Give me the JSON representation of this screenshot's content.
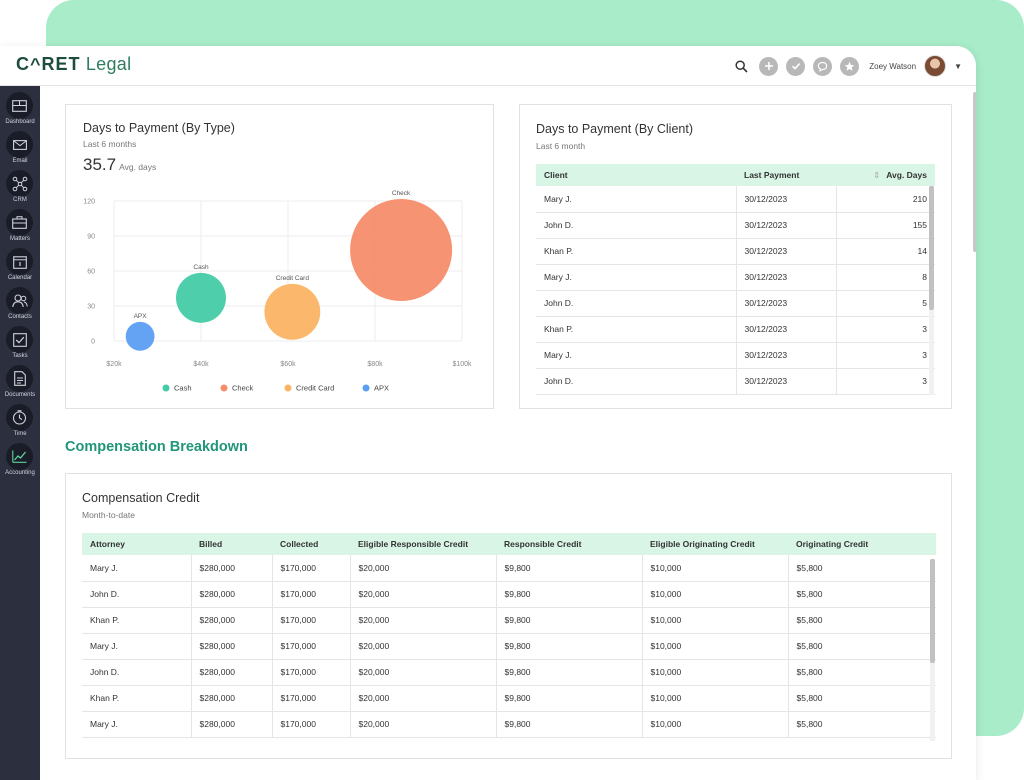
{
  "app": {
    "brand": "C^RET",
    "product": "Legal"
  },
  "header": {
    "user_name": "Zoey Watson"
  },
  "sidebar": {
    "items": [
      {
        "label": "Dashboard",
        "icon": "dashboard-icon"
      },
      {
        "label": "Email",
        "icon": "email-icon"
      },
      {
        "label": "CRM",
        "icon": "crm-icon"
      },
      {
        "label": "Matters",
        "icon": "briefcase-icon"
      },
      {
        "label": "Calendar",
        "icon": "calendar-icon"
      },
      {
        "label": "Contacts",
        "icon": "contacts-icon"
      },
      {
        "label": "Tasks",
        "icon": "tasks-icon"
      },
      {
        "label": "Documents",
        "icon": "documents-icon"
      },
      {
        "label": "Time",
        "icon": "time-icon"
      },
      {
        "label": "Accounting",
        "icon": "accounting-icon"
      }
    ]
  },
  "type_card": {
    "title": "Days to Payment (By Type)",
    "subtitle": "Last 6 months",
    "stat_value": "35.7",
    "stat_label": "Avg. days"
  },
  "chart_data": {
    "type": "scatter",
    "title": "",
    "xlabel": "",
    "ylabel": "",
    "xlim": [
      20,
      100
    ],
    "ylim": [
      0,
      120
    ],
    "x_tick_labels": [
      "$20k",
      "$40k",
      "$60k",
      "$80k",
      "$100k"
    ],
    "y_tick_labels": [
      "0",
      "30",
      "60",
      "90",
      "120"
    ],
    "grid": true,
    "legend": "bottom",
    "series": [
      {
        "name": "Cash",
        "x": 40,
        "y": 37,
        "size": 12,
        "color": "#45cba7"
      },
      {
        "name": "Check",
        "x": 86,
        "y": 78,
        "size": 50,
        "color": "#f58d6b"
      },
      {
        "name": "Credit Card",
        "x": 61,
        "y": 25,
        "size": 15,
        "color": "#fbb465"
      },
      {
        "name": "APX",
        "x": 26,
        "y": 4,
        "size": 4,
        "color": "#5c9ef3"
      }
    ]
  },
  "client_card": {
    "title": "Days to Payment (By Client)",
    "subtitle": "Last 6 month",
    "columns": [
      "Client",
      "Last Payment",
      "Avg. Days"
    ],
    "rows": [
      [
        "Mary J.",
        "30/12/2023",
        "210"
      ],
      [
        "John D.",
        "30/12/2023",
        "155"
      ],
      [
        "Khan P.",
        "30/12/2023",
        "14"
      ],
      [
        "Mary J.",
        "30/12/2023",
        "8"
      ],
      [
        "John D.",
        "30/12/2023",
        "5"
      ],
      [
        "Khan P.",
        "30/12/2023",
        "3"
      ],
      [
        "Mary J.",
        "30/12/2023",
        "3"
      ],
      [
        "John D.",
        "30/12/2023",
        "3"
      ]
    ]
  },
  "section": {
    "title": "Compensation Breakdown"
  },
  "comp_card": {
    "title": "Compensation Credit",
    "subtitle": "Month-to-date",
    "columns": [
      "Attorney",
      "Billed",
      "Collected",
      "Eligible Responsible Credit",
      "Responsible Credit",
      "Eligible Originating Credit",
      "Originating Credit"
    ],
    "rows": [
      [
        "Mary J.",
        "$280,000",
        "$170,000",
        "$20,000",
        "$9,800",
        "$10,000",
        "$5,800"
      ],
      [
        "John D.",
        "$280,000",
        "$170,000",
        "$20,000",
        "$9,800",
        "$10,000",
        "$5,800"
      ],
      [
        "Khan P.",
        "$280,000",
        "$170,000",
        "$20,000",
        "$9,800",
        "$10,000",
        "$5,800"
      ],
      [
        "Mary J.",
        "$280,000",
        "$170,000",
        "$20,000",
        "$9,800",
        "$10,000",
        "$5,800"
      ],
      [
        "John D.",
        "$280,000",
        "$170,000",
        "$20,000",
        "$9,800",
        "$10,000",
        "$5,800"
      ],
      [
        "Khan P.",
        "$280,000",
        "$170,000",
        "$20,000",
        "$9,800",
        "$10,000",
        "$5,800"
      ],
      [
        "Mary J.",
        "$280,000",
        "$170,000",
        "$20,000",
        "$9,800",
        "$10,000",
        "$5,800"
      ]
    ]
  }
}
